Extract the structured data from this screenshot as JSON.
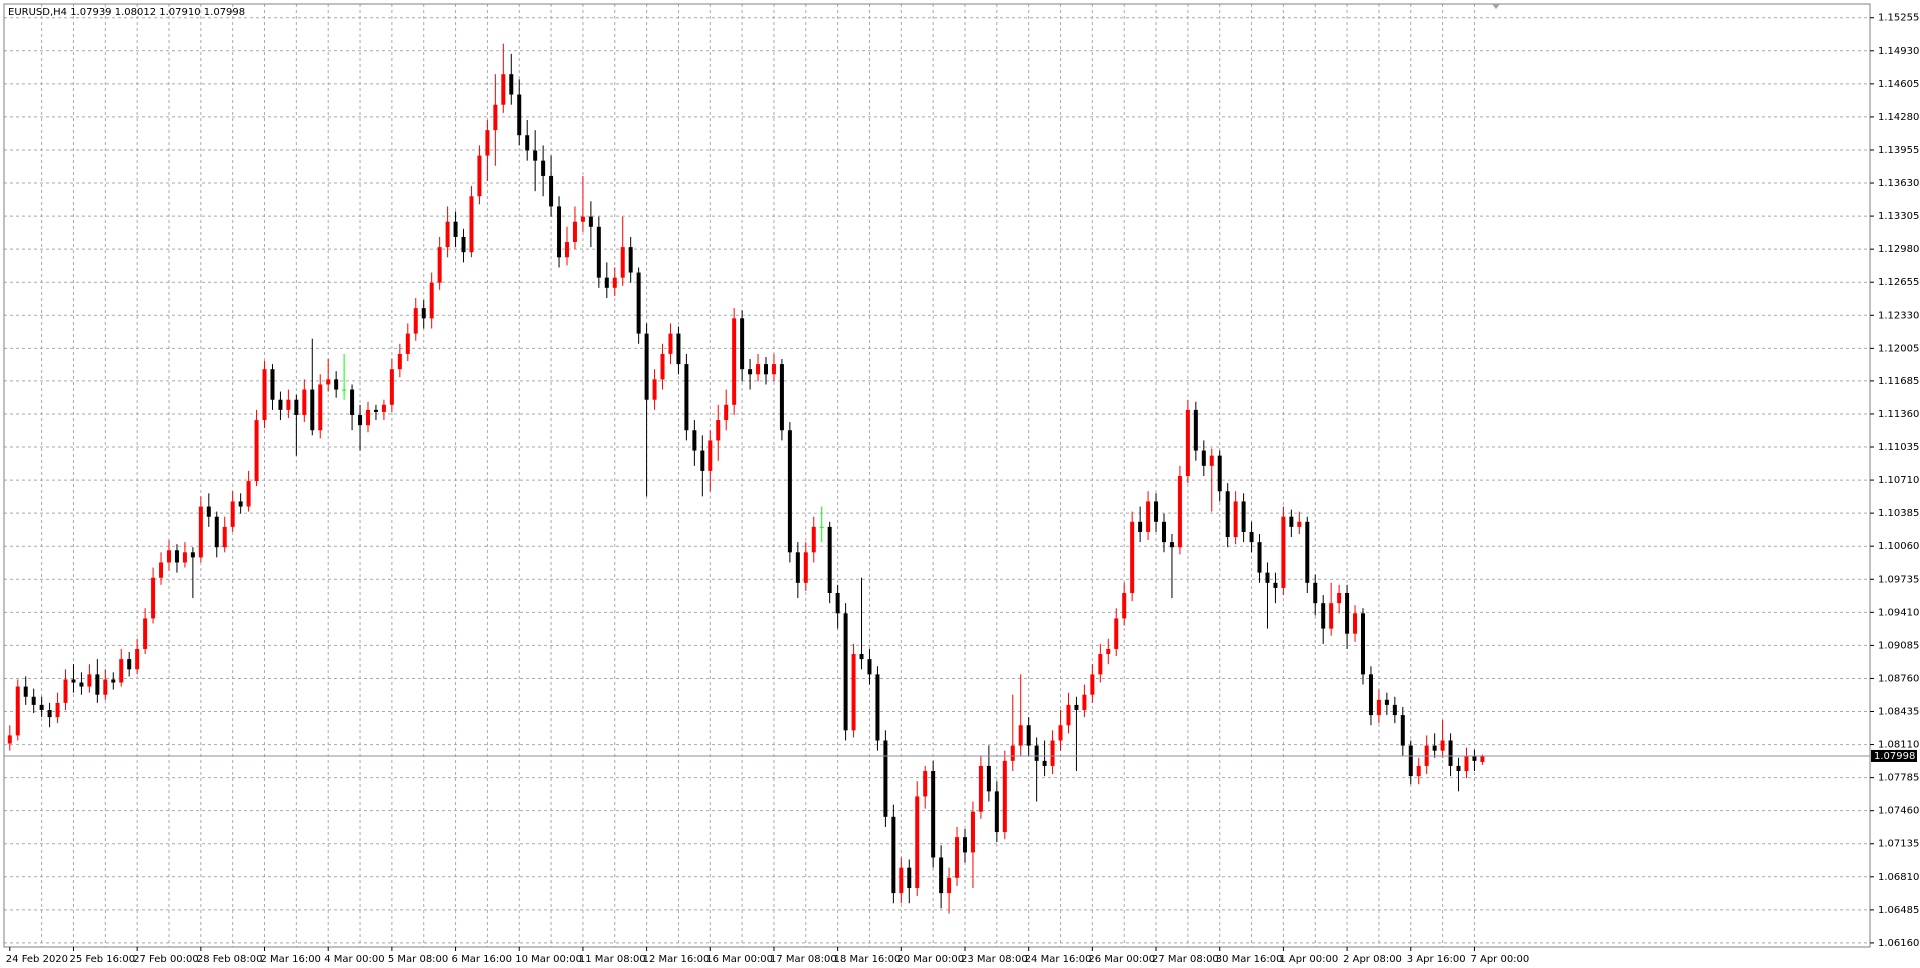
{
  "chart_data": {
    "type": "candlestick",
    "title": "EURUSD,H4  1.07939 1.08012 1.07910 1.07998",
    "bull_color": "#ff0000",
    "bear_color": "#000000",
    "doji_color": "#00ff00",
    "grid": true,
    "current_price": 1.07998,
    "ylim": [
      1.0612,
      1.1539
    ],
    "yticks": [
      1.15255,
      {
        "value": 1.1493,
        "label": "1.14930"
      },
      1.14605,
      {
        "value": 1.1428,
        "label": "1.14280"
      },
      1.13955,
      {
        "value": 1.1363,
        "label": "1.13630"
      },
      1.13305,
      {
        "value": 1.1298,
        "label": "1.12980"
      },
      1.12655,
      {
        "value": 1.1233,
        "label": "1.12330"
      },
      1.12005,
      1.11685,
      {
        "value": 1.1136,
        "label": "1.11360"
      },
      1.11035,
      {
        "value": 1.1071,
        "label": "1.10710"
      },
      1.10385,
      {
        "value": 1.1006,
        "label": "1.10060"
      },
      1.09735,
      {
        "value": 1.0941,
        "label": "1.09410"
      },
      1.09085,
      {
        "value": 1.0876,
        "label": "1.08760"
      },
      1.08435,
      {
        "value": 1.0811,
        "label": "1.08110"
      },
      1.07785,
      {
        "value": 1.0746,
        "label": "1.07460"
      },
      1.07135,
      {
        "value": 1.0681,
        "label": "1.06810"
      },
      1.06485,
      {
        "value": 1.0616,
        "label": "1.06160"
      }
    ],
    "categories": [
      "24 Feb 2020",
      null,
      null,
      null,
      null,
      null,
      null,
      null,
      "25 Feb 16:00",
      null,
      null,
      null,
      null,
      null,
      null,
      null,
      "27 Feb 00:00",
      null,
      null,
      null,
      null,
      null,
      null,
      null,
      "28 Feb 08:00",
      null,
      null,
      null,
      null,
      null,
      null,
      null,
      "2 Mar 16:00",
      null,
      null,
      null,
      null,
      null,
      null,
      null,
      "4 Mar 00:00",
      null,
      null,
      null,
      null,
      null,
      null,
      null,
      "5 Mar 08:00",
      null,
      null,
      null,
      null,
      null,
      null,
      null,
      "6 Mar 16:00",
      null,
      null,
      null,
      null,
      null,
      null,
      null,
      "10 Mar 00:00",
      null,
      null,
      null,
      null,
      null,
      null,
      null,
      "11 Mar 08:00",
      null,
      null,
      null,
      null,
      null,
      null,
      null,
      "12 Mar 16:00",
      null,
      null,
      null,
      null,
      null,
      null,
      null,
      "16 Mar 00:00",
      null,
      null,
      null,
      null,
      null,
      null,
      null,
      "17 Mar 08:00",
      null,
      null,
      null,
      null,
      null,
      null,
      null,
      "18 Mar 16:00",
      null,
      null,
      null,
      null,
      null,
      null,
      null,
      "20 Mar 00:00",
      null,
      null,
      null,
      null,
      null,
      null,
      null,
      "23 Mar 08:00",
      null,
      null,
      null,
      null,
      null,
      null,
      null,
      "24 Mar 16:00",
      null,
      null,
      null,
      null,
      null,
      null,
      null,
      "26 Mar 00:00",
      null,
      null,
      null,
      null,
      null,
      null,
      null,
      "27 Mar 08:00",
      null,
      null,
      null,
      null,
      null,
      null,
      null,
      "30 Mar 16:00",
      null,
      null,
      null,
      null,
      null,
      null,
      null,
      "1 Apr 00:00",
      null,
      null,
      null,
      null,
      null,
      null,
      null,
      "2 Apr 08:00",
      null,
      null,
      null,
      null,
      null,
      null,
      null,
      "3 Apr 16:00",
      null,
      null,
      null,
      null,
      null,
      null,
      null,
      "7 Apr 00:00",
      null
    ],
    "ohlc": [
      [
        1.0812,
        1.083,
        1.0805,
        1.082
      ],
      [
        1.082,
        1.0875,
        1.0815,
        1.0868
      ],
      [
        1.0868,
        1.0878,
        1.085,
        1.0858
      ],
      [
        1.0858,
        1.0866,
        1.0842,
        1.085
      ],
      [
        1.085,
        1.0858,
        1.0838,
        1.0845
      ],
      [
        1.0845,
        1.0852,
        1.0828,
        1.0838
      ],
      [
        1.0838,
        1.0862,
        1.0832,
        1.0852
      ],
      [
        1.0852,
        1.0885,
        1.0845,
        1.0875
      ],
      [
        1.0875,
        1.089,
        1.0862,
        1.0872
      ],
      [
        1.0872,
        1.0882,
        1.086,
        1.0868
      ],
      [
        1.0868,
        1.089,
        1.0862,
        1.088
      ],
      [
        1.088,
        1.0895,
        1.0852,
        1.086
      ],
      [
        1.086,
        1.0885,
        1.0855,
        1.0875
      ],
      [
        1.0875,
        1.0882,
        1.0865,
        1.0872
      ],
      [
        1.0872,
        1.0905,
        1.0868,
        1.0895
      ],
      [
        1.0895,
        1.0902,
        1.0878,
        1.0885
      ],
      [
        1.0885,
        1.0915,
        1.088,
        1.0905
      ],
      [
        1.0905,
        1.0945,
        1.09,
        1.0935
      ],
      [
        1.0935,
        1.0985,
        1.093,
        1.0975
      ],
      [
        1.0975,
        1.1,
        1.0968,
        1.099
      ],
      [
        1.099,
        1.1012,
        1.0982,
        1.1002
      ],
      [
        1.1002,
        1.1008,
        1.098,
        1.099
      ],
      [
        1.099,
        1.101,
        1.0985,
        1.1
      ],
      [
        1.1,
        1.1005,
        1.0955,
        1.0995
      ],
      [
        1.0995,
        1.1055,
        1.099,
        1.1045
      ],
      [
        1.1045,
        1.1058,
        1.1025,
        1.1035
      ],
      [
        1.1035,
        1.104,
        1.0995,
        1.1005
      ],
      [
        1.1005,
        1.1035,
        1.1,
        1.1025
      ],
      [
        1.1025,
        1.106,
        1.102,
        1.105
      ],
      [
        1.105,
        1.1058,
        1.1038,
        1.1045
      ],
      [
        1.1045,
        1.108,
        1.104,
        1.107
      ],
      [
        1.107,
        1.114,
        1.1065,
        1.113
      ],
      [
        1.113,
        1.1188,
        1.1122,
        1.118
      ],
      [
        1.118,
        1.1185,
        1.114,
        1.115
      ],
      [
        1.115,
        1.1158,
        1.113,
        1.114
      ],
      [
        1.114,
        1.116,
        1.1132,
        1.115
      ],
      [
        1.115,
        1.1155,
        1.1095,
        1.1135
      ],
      [
        1.1135,
        1.117,
        1.1128,
        1.116
      ],
      [
        1.116,
        1.121,
        1.1115,
        1.112
      ],
      [
        1.112,
        1.1175,
        1.1112,
        1.1165
      ],
      [
        1.1165,
        1.119,
        1.1158,
        1.117
      ],
      [
        1.117,
        1.1178,
        1.1152,
        1.116
      ],
      [
        1.116,
        1.1195,
        1.115,
        1.116
      ],
      [
        1.116,
        1.1165,
        1.112,
        1.1135
      ],
      [
        1.1135,
        1.1145,
        1.11,
        1.1125
      ],
      [
        1.1125,
        1.1148,
        1.1118,
        1.114
      ],
      [
        1.114,
        1.1145,
        1.113,
        1.1138
      ],
      [
        1.1138,
        1.115,
        1.113,
        1.1145
      ],
      [
        1.1145,
        1.119,
        1.1138,
        1.118
      ],
      [
        1.118,
        1.1205,
        1.1172,
        1.1195
      ],
      [
        1.1195,
        1.1225,
        1.1188,
        1.1215
      ],
      [
        1.1215,
        1.125,
        1.1208,
        1.124
      ],
      [
        1.124,
        1.1248,
        1.122,
        1.123
      ],
      [
        1.123,
        1.1275,
        1.122,
        1.1265
      ],
      [
        1.1265,
        1.131,
        1.1258,
        1.13
      ],
      [
        1.13,
        1.134,
        1.129,
        1.1325
      ],
      [
        1.1325,
        1.1335,
        1.13,
        1.131
      ],
      [
        1.131,
        1.1318,
        1.1285,
        1.1295
      ],
      [
        1.1295,
        1.136,
        1.129,
        1.135
      ],
      [
        1.135,
        1.14,
        1.1342,
        1.139
      ],
      [
        1.139,
        1.1425,
        1.1365,
        1.1415
      ],
      [
        1.1415,
        1.147,
        1.138,
        1.144
      ],
      [
        1.144,
        1.15,
        1.1432,
        1.147
      ],
      [
        1.147,
        1.149,
        1.144,
        1.145
      ],
      [
        1.145,
        1.1465,
        1.14,
        1.141
      ],
      [
        1.141,
        1.1425,
        1.1385,
        1.1395
      ],
      [
        1.1395,
        1.1415,
        1.1355,
        1.1385
      ],
      [
        1.1385,
        1.14,
        1.135,
        1.137
      ],
      [
        1.137,
        1.139,
        1.133,
        1.134
      ],
      [
        1.134,
        1.135,
        1.128,
        1.129
      ],
      [
        1.129,
        1.132,
        1.1282,
        1.1305
      ],
      [
        1.1305,
        1.134,
        1.1298,
        1.1325
      ],
      [
        1.1325,
        1.137,
        1.1315,
        1.133
      ],
      [
        1.133,
        1.1345,
        1.13,
        1.132
      ],
      [
        1.132,
        1.133,
        1.126,
        1.127
      ],
      [
        1.127,
        1.1285,
        1.125,
        1.126
      ],
      [
        1.126,
        1.128,
        1.1252,
        1.127
      ],
      [
        1.127,
        1.133,
        1.1262,
        1.13
      ],
      [
        1.13,
        1.131,
        1.1265,
        1.1275
      ],
      [
        1.1275,
        1.128,
        1.1205,
        1.1215
      ],
      [
        1.1215,
        1.1225,
        1.1055,
        1.115
      ],
      [
        1.115,
        1.118,
        1.114,
        1.117
      ],
      [
        1.117,
        1.1205,
        1.116,
        1.1195
      ],
      [
        1.1195,
        1.1225,
        1.1185,
        1.1215
      ],
      [
        1.1215,
        1.1222,
        1.1175,
        1.1185
      ],
      [
        1.1185,
        1.1195,
        1.111,
        1.112
      ],
      [
        1.112,
        1.113,
        1.1085,
        1.11
      ],
      [
        1.11,
        1.1115,
        1.1055,
        1.108
      ],
      [
        1.108,
        1.112,
        1.106,
        1.111
      ],
      [
        1.111,
        1.1145,
        1.109,
        1.113
      ],
      [
        1.113,
        1.116,
        1.112,
        1.1145
      ],
      [
        1.1145,
        1.124,
        1.1135,
        1.123
      ],
      [
        1.123,
        1.1238,
        1.1168,
        1.118
      ],
      [
        1.118,
        1.119,
        1.116,
        1.1175
      ],
      [
        1.1175,
        1.1195,
        1.1168,
        1.1185
      ],
      [
        1.1185,
        1.1192,
        1.1165,
        1.1175
      ],
      [
        1.1175,
        1.1195,
        1.1168,
        1.1185
      ],
      [
        1.1185,
        1.119,
        1.111,
        1.112
      ],
      [
        1.112,
        1.1128,
        1.099,
        1.1
      ],
      [
        1.1,
        1.101,
        1.0955,
        1.097
      ],
      [
        1.097,
        1.101,
        1.0962,
        1.1
      ],
      [
        1.1,
        1.1035,
        1.099,
        1.1025
      ],
      [
        1.1025,
        1.1045,
        1.101,
        1.1025
      ],
      [
        1.1025,
        1.103,
        1.095,
        1.096
      ],
      [
        1.096,
        1.0968,
        1.0925,
        1.094
      ],
      [
        1.094,
        1.095,
        1.0815,
        1.0825
      ],
      [
        1.0825,
        1.091,
        1.0818,
        1.09
      ],
      [
        1.09,
        1.0975,
        1.0885,
        1.0895
      ],
      [
        1.0895,
        1.0905,
        1.087,
        1.088
      ],
      [
        1.088,
        1.0888,
        1.0805,
        1.0815
      ],
      [
        1.0815,
        1.0825,
        1.073,
        1.074
      ],
      [
        1.074,
        1.0752,
        1.0655,
        1.0665
      ],
      [
        1.0665,
        1.07,
        1.0655,
        1.069
      ],
      [
        1.069,
        1.0698,
        1.0655,
        1.067
      ],
      [
        1.067,
        1.0775,
        1.0662,
        1.076
      ],
      [
        1.076,
        1.079,
        1.0748,
        1.0785
      ],
      [
        1.0785,
        1.0795,
        1.069,
        1.07
      ],
      [
        1.07,
        1.0712,
        1.065,
        1.0665
      ],
      [
        1.0665,
        1.069,
        1.0645,
        1.068
      ],
      [
        1.068,
        1.073,
        1.0672,
        1.072
      ],
      [
        1.072,
        1.0728,
        1.0695,
        1.0705
      ],
      [
        1.0705,
        1.0755,
        1.067,
        1.0745
      ],
      [
        1.0745,
        1.08,
        1.0738,
        1.079
      ],
      [
        1.079,
        1.081,
        1.0755,
        1.0765
      ],
      [
        1.0765,
        1.0775,
        1.0715,
        1.0725
      ],
      [
        1.0725,
        1.0805,
        1.0718,
        1.0795
      ],
      [
        1.0795,
        1.086,
        1.0785,
        1.081
      ],
      [
        1.081,
        1.088,
        1.08,
        1.083
      ],
      [
        1.083,
        1.0838,
        1.08,
        1.081
      ],
      [
        1.081,
        1.0818,
        1.0755,
        1.0795
      ],
      [
        1.0795,
        1.0815,
        1.078,
        1.079
      ],
      [
        1.079,
        1.0825,
        1.0782,
        1.0815
      ],
      [
        1.0815,
        1.0845,
        1.0805,
        1.083
      ],
      [
        1.083,
        1.0862,
        1.0822,
        1.085
      ],
      [
        1.085,
        1.0858,
        1.0785,
        1.0845
      ],
      [
        1.0845,
        1.087,
        1.0838,
        1.086
      ],
      [
        1.086,
        1.089,
        1.0852,
        1.088
      ],
      [
        1.088,
        1.091,
        1.0872,
        1.09
      ],
      [
        1.09,
        1.0915,
        1.089,
        1.0905
      ],
      [
        1.0905,
        1.0945,
        1.0898,
        1.0935
      ],
      [
        1.0935,
        1.097,
        1.0928,
        1.096
      ],
      [
        1.096,
        1.104,
        1.0952,
        1.103
      ],
      [
        1.103,
        1.1045,
        1.101,
        1.102
      ],
      [
        1.102,
        1.106,
        1.1012,
        1.105
      ],
      [
        1.105,
        1.1058,
        1.102,
        1.103
      ],
      [
        1.103,
        1.1038,
        1.1,
        1.101
      ],
      [
        1.101,
        1.1018,
        1.0955,
        1.1005
      ],
      [
        1.1005,
        1.1085,
        1.0998,
        1.1075
      ],
      [
        1.1075,
        1.115,
        1.1068,
        1.114
      ],
      [
        1.114,
        1.1148,
        1.109,
        1.11
      ],
      [
        1.11,
        1.111,
        1.1075,
        1.1085
      ],
      [
        1.1085,
        1.1102,
        1.104,
        1.1095
      ],
      [
        1.1095,
        1.11,
        1.105,
        1.106
      ],
      [
        1.106,
        1.1068,
        1.1005,
        1.1015
      ],
      [
        1.1015,
        1.106,
        1.1008,
        1.105
      ],
      [
        1.105,
        1.1058,
        1.101,
        1.102
      ],
      [
        1.102,
        1.103,
        1.1,
        1.101
      ],
      [
        1.101,
        1.1018,
        1.097,
        1.098
      ],
      [
        1.098,
        1.099,
        1.0925,
        1.097
      ],
      [
        1.097,
        1.098,
        1.095,
        1.0965
      ],
      [
        1.0965,
        1.1045,
        1.0958,
        1.1035
      ],
      [
        1.1035,
        1.1042,
        1.1015,
        1.1025
      ],
      [
        1.1025,
        1.104,
        1.1018,
        1.103
      ],
      [
        1.103,
        1.1035,
        1.096,
        1.097
      ],
      [
        1.097,
        1.0978,
        1.0938,
        1.095
      ],
      [
        1.095,
        1.0958,
        1.091,
        1.0925
      ],
      [
        1.0925,
        1.097,
        1.0918,
        1.095
      ],
      [
        1.095,
        1.0968,
        1.094,
        1.096
      ],
      [
        1.096,
        1.0968,
        1.0905,
        1.092
      ],
      [
        1.092,
        1.0948,
        1.0912,
        1.094
      ],
      [
        1.094,
        1.0945,
        1.087,
        1.088
      ],
      [
        1.088,
        1.0888,
        1.083,
        1.084
      ],
      [
        1.084,
        1.0865,
        1.0832,
        1.0855
      ],
      [
        1.0855,
        1.0862,
        1.084,
        1.085
      ],
      [
        1.085,
        1.0858,
        1.0832,
        1.084
      ],
      [
        1.084,
        1.0848,
        1.08,
        1.081
      ],
      [
        1.081,
        1.0815,
        1.0772,
        1.078
      ],
      [
        1.078,
        1.0798,
        1.0772,
        1.079
      ],
      [
        1.079,
        1.082,
        1.0782,
        1.081
      ],
      [
        1.081,
        1.0822,
        1.0798,
        1.0805
      ],
      [
        1.0805,
        1.0835,
        1.0798,
        1.0815
      ],
      [
        1.0815,
        1.0822,
        1.078,
        1.079
      ],
      [
        1.079,
        1.0798,
        1.0765,
        1.0785
      ],
      [
        1.0785,
        1.0808,
        1.0778,
        1.08
      ],
      [
        1.08,
        1.0806,
        1.0785,
        1.0795
      ],
      [
        1.07939,
        1.08012,
        1.0791,
        1.07998
      ]
    ]
  }
}
